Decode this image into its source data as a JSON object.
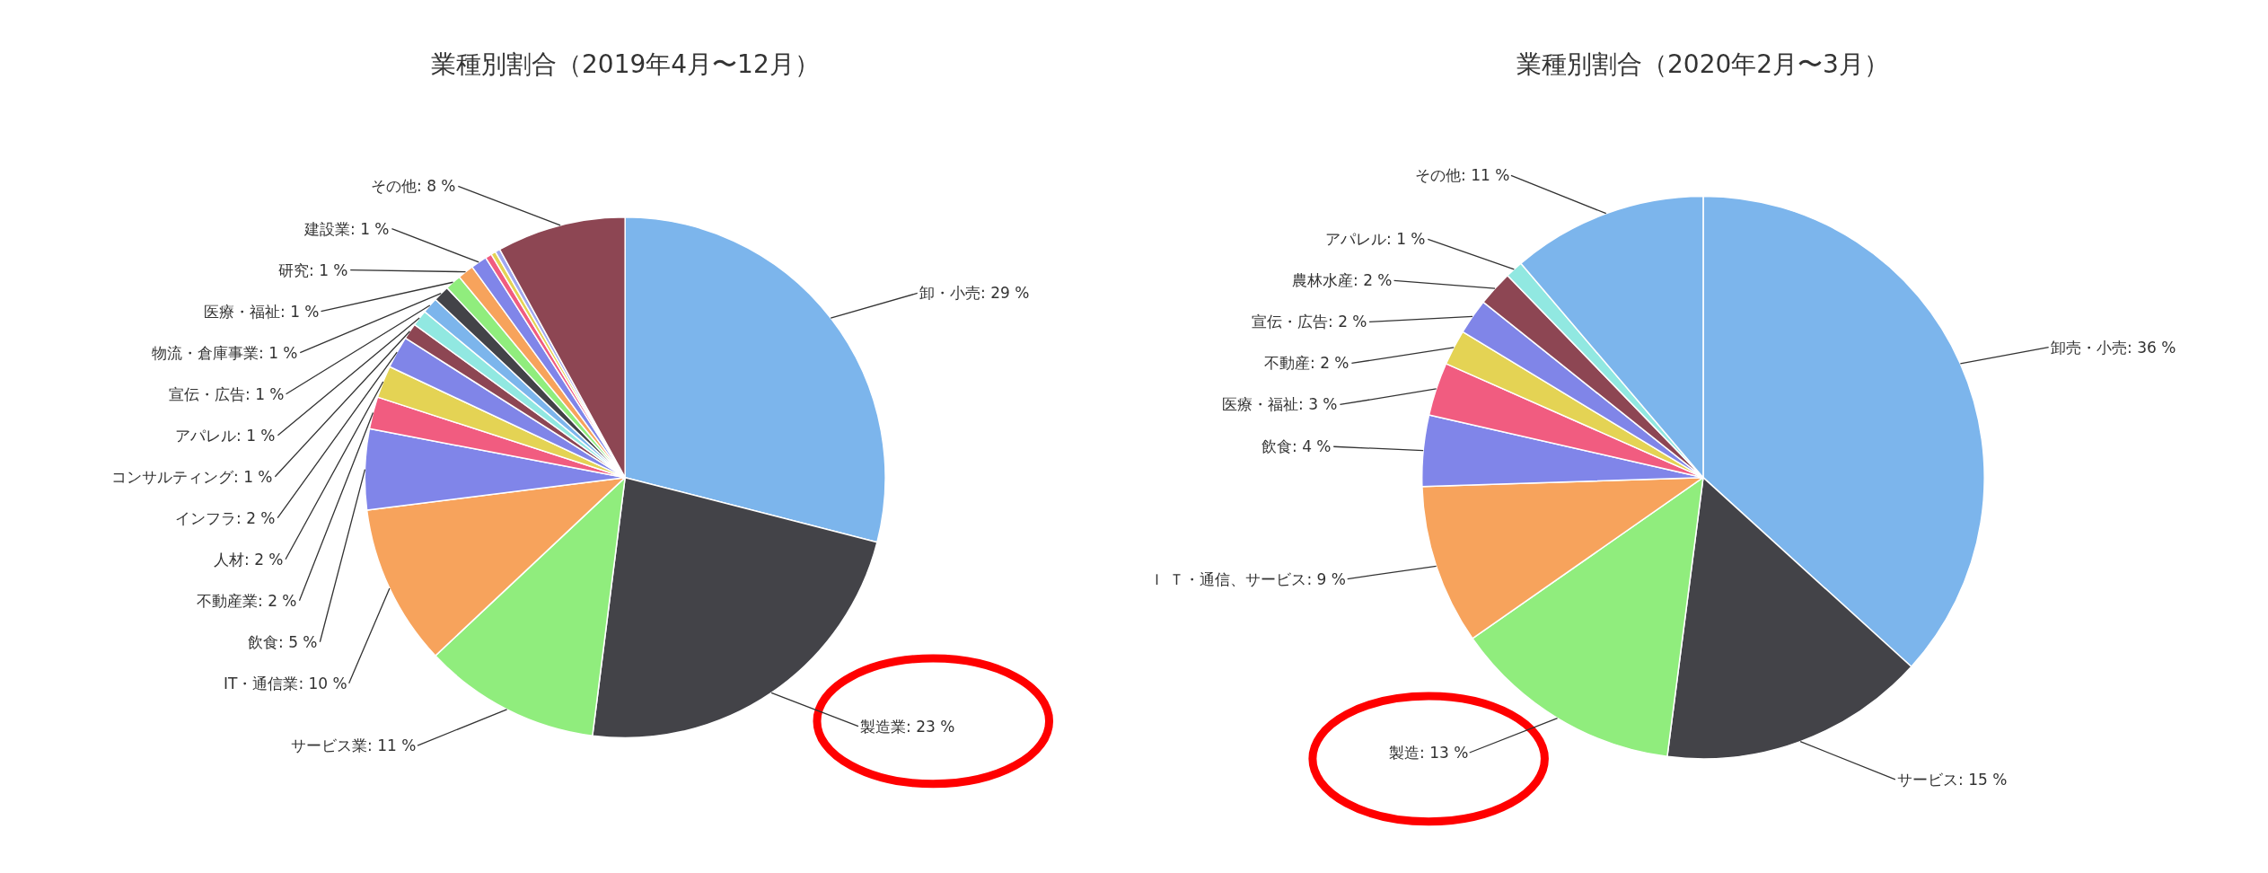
{
  "chart_data": [
    {
      "type": "pie",
      "title": "業種別割合（2019年4月〜12月）",
      "categories": [
        "卸・小売",
        "製造業",
        "サービス業",
        "IT・通信業",
        "飲食",
        "不動産業",
        "人材",
        "インフラ",
        "コンサルティング",
        "アパレル",
        "宣伝・広告",
        "物流・倉庫事業",
        "医療・福祉",
        "研究",
        "建設業",
        null,
        null,
        null,
        "その他"
      ],
      "values": [
        29,
        23,
        11,
        10,
        5,
        2,
        2,
        2,
        1,
        1,
        1,
        1,
        1,
        1,
        1,
        0.4,
        0.3,
        0.3,
        8
      ],
      "value_labels": [
        ": 29 %",
        ": 23 %",
        ": 11 %",
        ": 10 %",
        ": 5 %",
        ": 2 %",
        ": 2 %",
        ": 2 %",
        ": 1 %",
        ": 1 %",
        ": 1 %",
        ": 1 %",
        ": 1 %",
        ": 1 %",
        ": 1 %",
        null,
        null,
        null,
        ": 8 %"
      ],
      "colors": [
        "#7cb5ec",
        "#434348",
        "#90ed7d",
        "#f7a35c",
        "#8085e9",
        "#f15c80",
        "#e4d354",
        "#8085e8",
        "#8d4653",
        "#91e8e1",
        "#7cb5ec",
        "#434348",
        "#90ed7d",
        "#f7a35c",
        "#8085e9",
        "#f15c80",
        "#e4d354",
        "#a0a8f0",
        "#8d4653"
      ],
      "legend": false
    },
    {
      "type": "pie",
      "title": "業種別割合（2020年2月〜3月）",
      "categories": [
        "卸売・小売",
        "サービス",
        "製造",
        "Ｉ Ｔ・通信、サービス",
        "飲食",
        "医療・福祉",
        "不動産",
        "宣伝・広告",
        "農林水産",
        "アパレル",
        "その他"
      ],
      "values": [
        36,
        15,
        13,
        9,
        4,
        3,
        2,
        2,
        2,
        1,
        11
      ],
      "value_labels": [
        ": 36 %",
        ": 15 %",
        ": 13 %",
        ": 9 %",
        ": 4 %",
        ": 3 %",
        ": 2 %",
        ": 2 %",
        ": 2 %",
        ": 1 %",
        ": 11 %"
      ],
      "colors": [
        "#7cb5ec",
        "#434348",
        "#90ed7d",
        "#f7a35c",
        "#8085e9",
        "#f15c80",
        "#e4d354",
        "#8085e8",
        "#8d4653",
        "#91e8e1",
        "#7cb5ec"
      ],
      "legend": false
    }
  ]
}
